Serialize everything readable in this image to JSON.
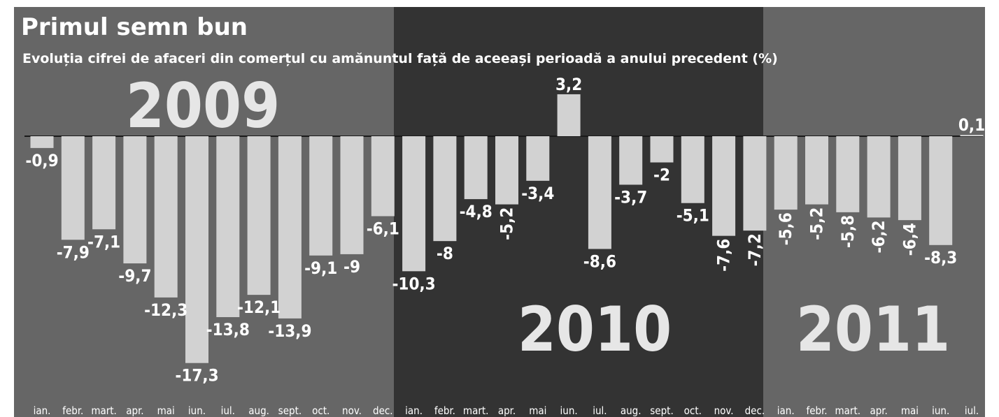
{
  "colors": {
    "panel_2009": "#666666",
    "panel_2010": "#333333",
    "panel_2011": "#666666",
    "bar": "#d2d2d2",
    "baseline": "#1a1a1a",
    "text": "#ffffff"
  },
  "chart_data": {
    "type": "bar",
    "title": "Primul semn bun",
    "subtitle": "Evoluția cifrei de afaceri din comerțul cu amănuntul față de aceeași perioadă a anului precedent (%)",
    "years": [
      "2009",
      "2010",
      "2011"
    ],
    "categories": [
      "ian.",
      "febr.",
      "mart.",
      "apr.",
      "mai",
      "iun.",
      "iul.",
      "aug.",
      "sept.",
      "oct.",
      "nov.",
      "dec.",
      "ian.",
      "febr.",
      "mart.",
      "apr.",
      "mai",
      "iun.",
      "iul.",
      "aug.",
      "sept.",
      "oct.",
      "nov.",
      "dec.",
      "ian.",
      "febr.",
      "mart.",
      "apr.",
      "mai",
      "iun.",
      "iul."
    ],
    "values": [
      -0.9,
      -7.9,
      -7.1,
      -9.7,
      -12.3,
      -17.3,
      -13.8,
      -12.1,
      -13.9,
      -9.1,
      -9,
      -6.1,
      -10.3,
      -8,
      -4.8,
      -5.2,
      -3.4,
      3.2,
      -8.6,
      -3.7,
      -2,
      -5.1,
      -7.6,
      -7.2,
      -5.6,
      -5.2,
      -5.8,
      -6.2,
      -6.4,
      -8.3,
      0.1
    ],
    "value_labels": [
      "-0,9",
      "-7,9",
      "-7,1",
      "-9,7",
      "-12,3",
      "-17,3",
      "-13,8",
      "-12,1",
      "-13,9",
      "-9,1",
      "-9",
      "-6,1",
      "-10,3",
      "-8",
      "-4,8",
      "-5,2",
      "-3,4",
      "3,2",
      "-8,6",
      "-3,7",
      "-2",
      "-5,1",
      "-7,6",
      "-7,2",
      "-5,6",
      "-5,2",
      "-5,8",
      "-6,2",
      "-6,4",
      "-8,3",
      "0,1"
    ],
    "xlabel": "",
    "ylabel": "",
    "grid": false
  }
}
